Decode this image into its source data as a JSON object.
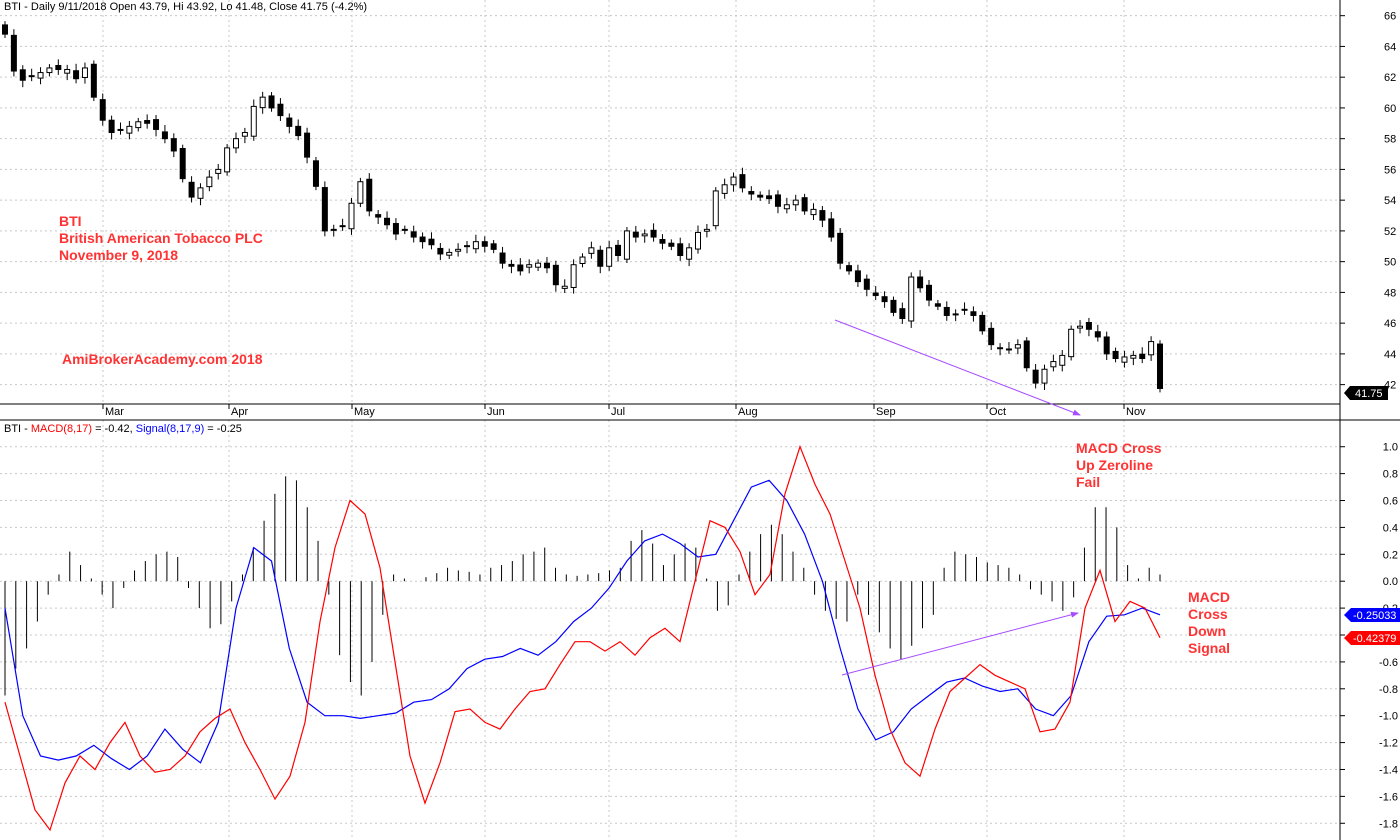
{
  "price_pane": {
    "header": "BTI - Daily 9/11/2018 Open 43.79, Hi 43.92, Lo 41.48, Close 41.75 (-4.2%)",
    "last_close_label": "41.75",
    "annotations": {
      "ticker": "BTI",
      "company": "British American Tobacco PLC",
      "date": "November 9, 2018",
      "watermark": "AmiBrokerAcademy.com  2018"
    }
  },
  "macd_pane": {
    "header_prefix": "BTI - ",
    "macd_label": "MACD(8,17)",
    "macd_value": " = -0.42, ",
    "signal_label": "Signal(8,17,9)",
    "signal_value": " = -0.25",
    "signal_readout": "-0.25033",
    "macd_readout": "-0.42379",
    "annotation_cross_up": [
      "MACD Cross",
      "Up Zeroline",
      "Fail"
    ],
    "annotation_cross_down": [
      "MACD",
      "Cross",
      "Down",
      "Signal"
    ]
  },
  "colors": {
    "macd_line": "#ff0000",
    "signal_line": "#0000ff",
    "annotation_text": "#ff3333",
    "arrow": "#a64dff",
    "grid": "#c8c8c8",
    "up_candle_fill": "#ffffff",
    "down_candle_fill": "#000000"
  },
  "chart_data": [
    {
      "type": "candlestick",
      "title": "BTI - Daily",
      "y_axis_ticks": [
        42,
        44,
        46,
        48,
        50,
        52,
        54,
        56,
        58,
        60,
        62,
        64,
        66
      ],
      "ylim": [
        41,
        66.5
      ],
      "x_axis_labels": [
        "Mar",
        "Apr",
        "May",
        "Jun",
        "Jul",
        "Aug",
        "Sep",
        "Oct",
        "Nov"
      ],
      "grid": true,
      "close_series": [
        64.8,
        62.4,
        61.8,
        62.1,
        62.3,
        62.6,
        62.5,
        62.5,
        61.9,
        62.6,
        60.7,
        59.2,
        58.4,
        58.6,
        58.8,
        59.1,
        59.0,
        58.6,
        58.0,
        57.2,
        55.4,
        54.2,
        54.8,
        55.5,
        56.0,
        57.4,
        58.0,
        58.4,
        60.1,
        60.7,
        60.0,
        59.5,
        58.8,
        58.2,
        56.8,
        54.9,
        52.0,
        52.1,
        52.3,
        53.8,
        55.2,
        53.3,
        52.9,
        52.4,
        51.8,
        52.1,
        51.6,
        51.3,
        51.1,
        50.5,
        50.6,
        50.8,
        51.0,
        51.3,
        51.0,
        50.8,
        49.9,
        49.7,
        49.4,
        49.8,
        49.9,
        49.6,
        48.5,
        48.4,
        49.8,
        50.3,
        50.9,
        49.7,
        50.9,
        50.4,
        52.0,
        51.6,
        51.8,
        51.6,
        51.2,
        51.0,
        50.4,
        50.9,
        51.9,
        52.1,
        54.6,
        55.0,
        55.5,
        54.8,
        54.4,
        54.2,
        54.1,
        53.6,
        53.7,
        54.0,
        53.3,
        53.4,
        52.7,
        51.6,
        49.9,
        49.4,
        48.7,
        48.2,
        47.8,
        47.4,
        46.7,
        46.3,
        49.0,
        48.3,
        47.5,
        47.1,
        46.5,
        46.6,
        46.9,
        46.5,
        45.5,
        44.6,
        44.4,
        44.3,
        44.6,
        43.1,
        42.1,
        43.0,
        43.5,
        43.9,
        45.6,
        45.8,
        45.6,
        45.1,
        44.0,
        43.7,
        43.8,
        43.9,
        43.7,
        44.8,
        41.75
      ],
      "last_close": 41.75
    },
    {
      "type": "line+histogram",
      "title": "MACD(8,17), Signal(8,17,9)",
      "y_axis_ticks": [
        -1.8,
        -1.6,
        -1.4,
        -1.2,
        -1.0,
        -0.8,
        -0.6,
        -0.4,
        -0.2,
        0.0,
        0.2,
        0.4,
        0.6,
        0.8,
        1.0
      ],
      "ylim": [
        -1.85,
        1.05
      ],
      "grid": true,
      "series": [
        {
          "name": "MACD(8,17)",
          "values": [
            -0.9,
            -1.3,
            -1.7,
            -1.85,
            -1.5,
            -1.3,
            -1.4,
            -1.2,
            -1.05,
            -1.3,
            -1.42,
            -1.4,
            -1.3,
            -1.12,
            -1.02,
            -0.95,
            -1.2,
            -1.4,
            -1.62,
            -1.45,
            -1.05,
            -0.3,
            0.25,
            0.6,
            0.5,
            0.1,
            -0.6,
            -1.3,
            -1.65,
            -1.35,
            -0.97,
            -0.95,
            -1.05,
            -1.1,
            -0.95,
            -0.82,
            -0.8,
            -0.62,
            -0.45,
            -0.45,
            -0.52,
            -0.45,
            -0.55,
            -0.42,
            -0.35,
            -0.45,
            0.0,
            0.45,
            0.4,
            0.22,
            -0.1,
            0.05,
            0.65,
            1.0,
            0.72,
            0.5,
            0.15,
            -0.2,
            -0.7,
            -1.1,
            -1.35,
            -1.45,
            -1.1,
            -0.82,
            -0.72,
            -0.62,
            -0.7,
            -0.75,
            -0.8,
            -1.12,
            -1.1,
            -0.9,
            -0.2,
            0.08,
            -0.3,
            -0.15,
            -0.2,
            -0.42
          ],
          "color": "#ff0000"
        },
        {
          "name": "Signal(8,17,9)",
          "values": [
            -0.2,
            -1.0,
            -1.3,
            -1.33,
            -1.3,
            -1.22,
            -1.32,
            -1.4,
            -1.3,
            -1.1,
            -1.25,
            -1.35,
            -1.05,
            -0.2,
            0.25,
            0.15,
            -0.5,
            -0.9,
            -1.0,
            -1.0,
            -1.02,
            -1.0,
            -0.98,
            -0.9,
            -0.88,
            -0.8,
            -0.65,
            -0.58,
            -0.56,
            -0.5,
            -0.55,
            -0.45,
            -0.3,
            -0.2,
            -0.05,
            0.15,
            0.3,
            0.35,
            0.28,
            0.18,
            0.2,
            0.45,
            0.7,
            0.75,
            0.6,
            0.35,
            0.0,
            -0.5,
            -0.95,
            -1.18,
            -1.12,
            -0.95,
            -0.85,
            -0.75,
            -0.72,
            -0.78,
            -0.82,
            -0.8,
            -0.95,
            -1.0,
            -0.85,
            -0.45,
            -0.26,
            -0.25,
            -0.2,
            -0.25
          ],
          "color": "#0000ff"
        },
        {
          "name": "histogram",
          "values": [
            -0.85,
            -0.65,
            -0.5,
            -0.3,
            -0.1,
            0.05,
            0.22,
            0.12,
            0.02,
            -0.1,
            -0.2,
            -0.05,
            0.08,
            0.15,
            0.2,
            0.22,
            0.18,
            -0.05,
            -0.2,
            -0.35,
            -0.32,
            -0.15,
            0.05,
            0.25,
            0.45,
            0.65,
            0.78,
            0.75,
            0.55,
            0.3,
            -0.1,
            -0.55,
            -0.75,
            -0.85,
            -0.6,
            -0.25,
            0.05,
            0.02,
            0.0,
            0.03,
            0.06,
            0.1,
            0.08,
            0.07,
            0.05,
            0.1,
            0.12,
            0.15,
            0.2,
            0.22,
            0.25,
            0.1,
            0.05,
            0.04,
            0.05,
            0.06,
            0.08,
            0.1,
            0.3,
            0.38,
            0.28,
            0.12,
            0.2,
            0.28,
            0.25,
            0.02,
            -0.22,
            -0.18,
            0.05,
            0.22,
            0.35,
            0.42,
            0.35,
            0.22,
            0.1,
            -0.1,
            -0.22,
            -0.28,
            -0.3,
            -0.1,
            -0.25,
            -0.38,
            -0.5,
            -0.58,
            -0.48,
            -0.35,
            -0.25,
            0.1,
            0.22,
            0.2,
            0.18,
            0.14,
            0.12,
            0.1,
            0.05,
            -0.06,
            -0.1,
            -0.15,
            -0.22,
            -0.12,
            0.25,
            0.55,
            0.55,
            0.4,
            0.12,
            0.02,
            0.1,
            0.05
          ],
          "color": "#000000"
        }
      ]
    }
  ]
}
